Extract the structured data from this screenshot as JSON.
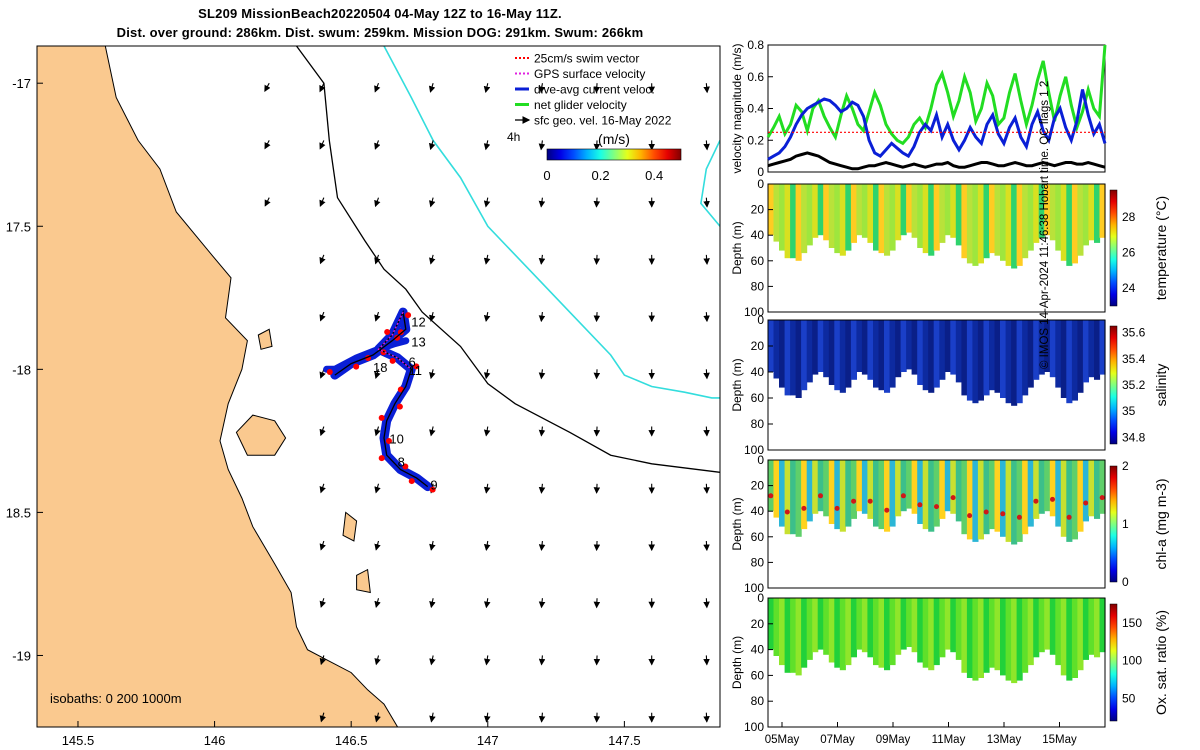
{
  "title": {
    "line1": "SL209 MissionBeach20220504 04-May 12Z to 16-May 11Z.",
    "line2": "Dist. over ground: 286km. Dist. swum: 259km. Mission DOG: 291km. Swum: 266km"
  },
  "credit": "© IMOS 14-Apr-2024 11:46:38 Hobart time. QC flags 1  2",
  "colors": {
    "land": "#fac98f",
    "sea": "#ffffff",
    "track": "#0a1fd6",
    "swim": "#ff0000",
    "gps": "#e020e0",
    "net": "#22dd22",
    "isobath200": "#000000",
    "isobath1000": "#33dddd"
  },
  "chart_data": [
    {
      "type": "map",
      "xlim": [
        145.35,
        147.85
      ],
      "ylim": [
        -19.25,
        -16.87
      ],
      "xticks": [
        {
          "v": 145.5,
          "label": "145.5"
        },
        {
          "v": 146,
          "label": "146"
        },
        {
          "v": 146.5,
          "label": "146.5"
        },
        {
          "v": 147,
          "label": "147"
        },
        {
          "v": 147.5,
          "label": "147.5"
        }
      ],
      "yticks": [
        {
          "v": -17,
          "label": "-17"
        },
        {
          "v": -17.5,
          "label": "17.5"
        },
        {
          "v": -18,
          "label": "-18"
        },
        {
          "v": -18.5,
          "label": "18.5"
        },
        {
          "v": -19,
          "label": "-19"
        }
      ],
      "legend": {
        "placement": "top-right",
        "entries": [
          {
            "label": "25cm/s swim vector",
            "color": "#ff0000",
            "style": "dotted"
          },
          {
            "label": "GPS surface velocity",
            "color": "#e020e0",
            "style": "dotted"
          },
          {
            "label": "dive-avg current veloc.",
            "color": "#0a1fd6",
            "style": "solid"
          },
          {
            "label": "net glider velocity",
            "color": "#22dd22",
            "style": "solid"
          },
          {
            "label": "sfc geo. vel. 16-May 2022",
            "color": "#000000",
            "style": "arrow"
          }
        ]
      },
      "colorbar": {
        "label": "(m/s)",
        "ticks": [
          "0",
          "0.2",
          "0.4"
        ],
        "range": [
          0,
          0.5
        ],
        "colormap": "jet"
      },
      "side_label": "4h",
      "isobath_label": "isobaths: 0   200  1000m",
      "track_labels": [
        {
          "text": "12",
          "lon": 146.72,
          "lat": -17.85
        },
        {
          "text": "13",
          "lon": 146.72,
          "lat": -17.92
        },
        {
          "text": "18",
          "lon": 146.58,
          "lat": -18.01
        },
        {
          "text": "6",
          "lon": 146.71,
          "lat": -17.99
        },
        {
          "text": "11",
          "lon": 146.71,
          "lat": -18.02
        },
        {
          "text": "10",
          "lon": 146.64,
          "lat": -18.26
        },
        {
          "text": "8",
          "lon": 146.67,
          "lat": -18.34
        },
        {
          "text": "9",
          "lon": 146.79,
          "lat": -18.42
        }
      ],
      "coast": [
        [
          145.35,
          -16.87
        ],
        [
          145.6,
          -16.87
        ],
        [
          145.64,
          -17.05
        ],
        [
          145.72,
          -17.2
        ],
        [
          145.8,
          -17.3
        ],
        [
          145.86,
          -17.45
        ],
        [
          145.99,
          -17.6
        ],
        [
          146.06,
          -17.68
        ],
        [
          146.04,
          -17.82
        ],
        [
          146.12,
          -17.9
        ],
        [
          146.1,
          -18.0
        ],
        [
          146.05,
          -18.12
        ],
        [
          146.02,
          -18.25
        ],
        [
          146.05,
          -18.35
        ],
        [
          146.1,
          -18.45
        ],
        [
          146.14,
          -18.55
        ],
        [
          146.22,
          -18.68
        ],
        [
          146.28,
          -18.78
        ],
        [
          146.3,
          -18.9
        ],
        [
          146.34,
          -18.98
        ],
        [
          146.42,
          -19.02
        ],
        [
          146.5,
          -19.06
        ],
        [
          146.56,
          -19.12
        ],
        [
          146.62,
          -19.17
        ],
        [
          146.67,
          -19.25
        ],
        [
          145.35,
          -19.25
        ]
      ],
      "islands": [
        [
          [
            146.08,
            -18.22
          ],
          [
            146.14,
            -18.16
          ],
          [
            146.22,
            -18.18
          ],
          [
            146.26,
            -18.24
          ],
          [
            146.22,
            -18.3
          ],
          [
            146.12,
            -18.3
          ]
        ],
        [
          [
            146.48,
            -18.5
          ],
          [
            146.52,
            -18.53
          ],
          [
            146.51,
            -18.6
          ],
          [
            146.47,
            -18.58
          ]
        ],
        [
          [
            146.52,
            -18.72
          ],
          [
            146.56,
            -18.7
          ],
          [
            146.57,
            -18.78
          ],
          [
            146.52,
            -18.77
          ]
        ],
        [
          [
            146.16,
            -17.88
          ],
          [
            146.2,
            -17.86
          ],
          [
            146.21,
            -17.92
          ],
          [
            146.17,
            -17.93
          ]
        ]
      ],
      "isobath200": [
        [
          146.3,
          -16.87
        ],
        [
          146.4,
          -17.0
        ],
        [
          146.42,
          -17.2
        ],
        [
          146.45,
          -17.4
        ],
        [
          146.55,
          -17.55
        ],
        [
          146.62,
          -17.65
        ],
        [
          146.7,
          -17.72
        ],
        [
          146.76,
          -17.8
        ],
        [
          146.9,
          -17.92
        ],
        [
          147.0,
          -18.05
        ],
        [
          147.1,
          -18.12
        ],
        [
          147.3,
          -18.22
        ],
        [
          147.45,
          -18.3
        ],
        [
          147.6,
          -18.33
        ],
        [
          147.85,
          -18.36
        ]
      ],
      "isobath1000": [
        [
          146.62,
          -16.87
        ],
        [
          146.72,
          -17.05
        ],
        [
          146.8,
          -17.2
        ],
        [
          146.9,
          -17.33
        ],
        [
          147.0,
          -17.5
        ],
        [
          147.15,
          -17.65
        ],
        [
          147.3,
          -17.8
        ],
        [
          147.45,
          -17.95
        ],
        [
          147.5,
          -18.02
        ],
        [
          147.6,
          -18.06
        ],
        [
          147.72,
          -18.08
        ],
        [
          147.82,
          -18.1
        ],
        [
          147.85,
          -18.1
        ]
      ],
      "isobath1000_ne": [
        [
          147.85,
          -17.2
        ],
        [
          147.8,
          -17.3
        ],
        [
          147.78,
          -17.42
        ],
        [
          147.85,
          -17.5
        ]
      ],
      "track": [
        [
          146.44,
          -18.02
        ],
        [
          146.5,
          -17.98
        ],
        [
          146.58,
          -17.95
        ],
        [
          146.65,
          -17.9
        ],
        [
          146.7,
          -17.86
        ],
        [
          146.69,
          -17.8
        ],
        [
          146.65,
          -17.88
        ],
        [
          146.6,
          -17.93
        ],
        [
          146.67,
          -17.96
        ],
        [
          146.72,
          -18.0
        ],
        [
          146.7,
          -18.06
        ],
        [
          146.66,
          -18.12
        ],
        [
          146.63,
          -18.18
        ],
        [
          146.62,
          -18.24
        ],
        [
          146.63,
          -18.3
        ],
        [
          146.68,
          -18.35
        ],
        [
          146.74,
          -18.38
        ],
        [
          146.78,
          -18.41
        ]
      ],
      "track_west": [
        [
          146.41,
          -18.0
        ],
        [
          146.44,
          -18.0
        ],
        [
          146.52,
          -17.96
        ],
        [
          146.6,
          -17.93
        ],
        [
          146.66,
          -17.91
        ],
        [
          146.7,
          -17.9
        ]
      ]
    },
    {
      "type": "line",
      "ylabel": "velocity magnitude (m/s)",
      "ylim": [
        0,
        0.8
      ],
      "yticks": [
        "0",
        "0.2",
        "0.4",
        "0.6",
        "0.8"
      ],
      "series": [
        {
          "color": "#22dd22",
          "values": [
            0.22,
            0.28,
            0.35,
            0.24,
            0.3,
            0.42,
            0.38,
            0.26,
            0.4,
            0.45,
            0.35,
            0.28,
            0.22,
            0.36,
            0.48,
            0.4,
            0.3,
            0.26,
            0.38,
            0.5,
            0.42,
            0.3,
            0.24,
            0.2,
            0.18,
            0.22,
            0.3,
            0.34,
            0.28,
            0.4,
            0.55,
            0.62,
            0.5,
            0.35,
            0.45,
            0.6,
            0.5,
            0.32,
            0.4,
            0.56,
            0.48,
            0.3,
            0.34,
            0.5,
            0.62,
            0.45,
            0.3,
            0.42,
            0.58,
            0.7,
            0.5,
            0.32,
            0.48,
            0.6,
            0.42,
            0.28,
            0.38,
            0.52,
            0.4,
            0.35,
            0.8
          ]
        },
        {
          "color": "#0a1fd6",
          "values": [
            0.08,
            0.1,
            0.12,
            0.16,
            0.22,
            0.3,
            0.36,
            0.4,
            0.42,
            0.44,
            0.46,
            0.45,
            0.42,
            0.38,
            0.4,
            0.44,
            0.42,
            0.35,
            0.2,
            0.12,
            0.1,
            0.14,
            0.18,
            0.15,
            0.12,
            0.1,
            0.16,
            0.25,
            0.3,
            0.26,
            0.36,
            0.22,
            0.3,
            0.2,
            0.14,
            0.2,
            0.28,
            0.22,
            0.18,
            0.3,
            0.36,
            0.24,
            0.18,
            0.28,
            0.34,
            0.22,
            0.16,
            0.3,
            0.38,
            0.26,
            0.2,
            0.34,
            0.4,
            0.28,
            0.2,
            0.32,
            0.52,
            0.36,
            0.24,
            0.3,
            0.18
          ]
        },
        {
          "color": "#000000",
          "values": [
            0.04,
            0.05,
            0.06,
            0.07,
            0.08,
            0.1,
            0.11,
            0.12,
            0.11,
            0.1,
            0.08,
            0.06,
            0.05,
            0.04,
            0.03,
            0.02,
            0.02,
            0.03,
            0.04,
            0.04,
            0.05,
            0.06,
            0.05,
            0.04,
            0.03,
            0.04,
            0.05,
            0.04,
            0.03,
            0.04,
            0.05,
            0.05,
            0.06,
            0.04,
            0.03,
            0.03,
            0.04,
            0.05,
            0.06,
            0.06,
            0.05,
            0.04,
            0.04,
            0.05,
            0.06,
            0.05,
            0.04,
            0.04,
            0.05,
            0.06,
            0.05,
            0.04,
            0.05,
            0.06,
            0.06,
            0.05,
            0.05,
            0.06,
            0.05,
            0.04,
            0.03
          ]
        },
        {
          "color": "#ff0000",
          "dotted": true,
          "values": [
            0.25,
            0.25,
            0.25,
            0.25,
            0.25,
            0.25,
            0.25,
            0.25,
            0.25,
            0.25,
            0.25,
            0.25,
            0.25,
            0.25,
            0.25,
            0.25,
            0.25,
            0.25,
            0.25,
            0.25,
            0.25,
            0.25,
            0.25,
            0.25,
            0.25,
            0.25,
            0.25,
            0.25,
            0.25,
            0.25,
            0.25,
            0.25,
            0.25,
            0.25,
            0.25,
            0.25,
            0.25,
            0.25,
            0.25,
            0.25,
            0.25,
            0.25,
            0.25,
            0.25,
            0.25,
            0.25,
            0.25,
            0.25,
            0.25,
            0.25,
            0.25,
            0.25,
            0.25,
            0.25,
            0.25,
            0.25,
            0.25,
            0.25,
            0.25,
            0.25,
            0.25
          ]
        }
      ]
    },
    {
      "type": "heatmap",
      "ylabel": "Depth (m)",
      "ylim": [
        0,
        100
      ],
      "yticks": [
        "0",
        "20",
        "40",
        "60",
        "80",
        "100"
      ],
      "colorbar": {
        "label": "temperature (°C)",
        "ticks": [
          "24",
          "26",
          "28"
        ],
        "range": [
          23,
          29.5
        ]
      },
      "colors": [
        "#ffcc22",
        "#d9e020",
        "#b9e23a",
        "#2fd36d",
        "#9ee63e"
      ],
      "max_depth": [
        40,
        45,
        52,
        58,
        58,
        60,
        54,
        48,
        42,
        40,
        44,
        50,
        54,
        56,
        52,
        46,
        40,
        42,
        46,
        52,
        54,
        56,
        52,
        44,
        40,
        38,
        42,
        50,
        54,
        56,
        52,
        46,
        40,
        42,
        48,
        58,
        62,
        64,
        62,
        58,
        54,
        56,
        60,
        64,
        66,
        64,
        58,
        52,
        46,
        42,
        40,
        44,
        52,
        60,
        64,
        62,
        56,
        48,
        44,
        46,
        42
      ]
    },
    {
      "type": "heatmap",
      "ylabel": "Depth (m)",
      "ylim": [
        0,
        100
      ],
      "yticks": [
        "0",
        "20",
        "40",
        "60",
        "80",
        "100"
      ],
      "colorbar": {
        "label": "salinity",
        "ticks": [
          "34.8",
          "35",
          "35.2",
          "35.4",
          "35.6"
        ],
        "range": [
          34.75,
          35.65
        ]
      },
      "colors": [
        "#1a3fc8",
        "#0d2aa0",
        "#0a1f88"
      ],
      "max_depth": [
        40,
        45,
        52,
        58,
        58,
        60,
        54,
        48,
        42,
        40,
        44,
        50,
        54,
        56,
        52,
        46,
        40,
        42,
        46,
        52,
        54,
        56,
        52,
        44,
        40,
        38,
        42,
        50,
        54,
        56,
        52,
        46,
        40,
        42,
        48,
        58,
        62,
        64,
        62,
        58,
        54,
        56,
        60,
        64,
        66,
        64,
        58,
        52,
        46,
        42,
        40,
        44,
        52,
        60,
        64,
        62,
        56,
        48,
        44,
        46,
        42
      ]
    },
    {
      "type": "heatmap",
      "ylabel": "Depth (m)",
      "ylim": [
        0,
        100
      ],
      "yticks": [
        "0",
        "20",
        "40",
        "60",
        "80",
        "100"
      ],
      "colorbar": {
        "label": "chl-a (mg m-3)",
        "ticks": [
          "0",
          "1",
          "2"
        ],
        "range": [
          0,
          2
        ]
      },
      "colors": [
        "#2bb6d6",
        "#5fcf6a",
        "#c8e030",
        "#ffd21f",
        "#3cbf8a"
      ],
      "max_depth": [
        40,
        45,
        52,
        58,
        58,
        60,
        54,
        48,
        42,
        40,
        44,
        50,
        54,
        56,
        52,
        46,
        40,
        42,
        46,
        52,
        54,
        56,
        52,
        44,
        40,
        38,
        42,
        50,
        54,
        56,
        52,
        46,
        40,
        42,
        48,
        58,
        62,
        64,
        62,
        58,
        54,
        56,
        60,
        64,
        66,
        64,
        58,
        52,
        46,
        42,
        40,
        44,
        52,
        60,
        64,
        62,
        56,
        48,
        44,
        46,
        42
      ]
    },
    {
      "type": "heatmap",
      "ylabel": "Depth (m)",
      "ylim": [
        0,
        100
      ],
      "yticks": [
        "0",
        "20",
        "40",
        "60",
        "80",
        "100"
      ],
      "xticks": [
        "05May",
        "07May",
        "09May",
        "11May",
        "13May",
        "15May"
      ],
      "colorbar": {
        "label": "Ox. sat. ratio (%)",
        "ticks": [
          "50",
          "100",
          "150"
        ],
        "range": [
          20,
          175
        ]
      },
      "colors": [
        "#22d13a",
        "#5fe02a",
        "#8fe62a"
      ],
      "max_depth": [
        40,
        45,
        52,
        58,
        58,
        60,
        54,
        48,
        42,
        40,
        44,
        50,
        54,
        56,
        52,
        46,
        40,
        42,
        46,
        52,
        54,
        56,
        52,
        44,
        40,
        38,
        42,
        50,
        54,
        56,
        52,
        46,
        40,
        42,
        48,
        58,
        62,
        64,
        62,
        58,
        54,
        56,
        60,
        64,
        66,
        64,
        58,
        52,
        46,
        42,
        40,
        44,
        52,
        60,
        64,
        62,
        56,
        48,
        44,
        46,
        42
      ]
    }
  ]
}
